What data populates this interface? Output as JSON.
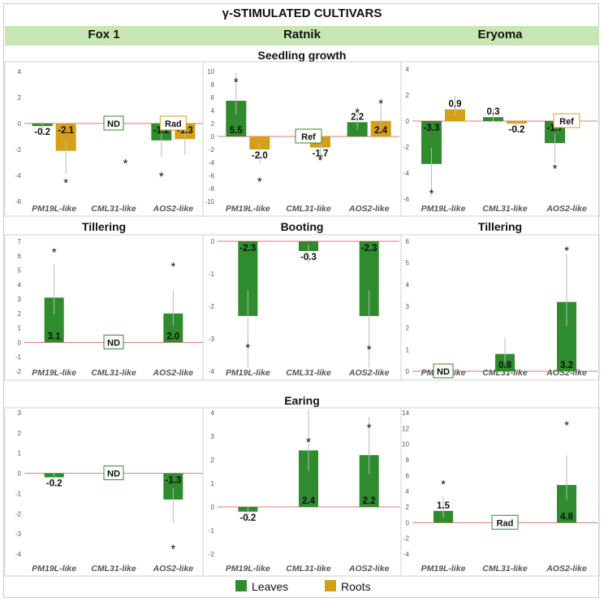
{
  "title": "γ-STIMULATED CULTIVARS",
  "columns": [
    "Fox 1",
    "Ratnik",
    "Eryoma"
  ],
  "row_titles": {
    "seedling": "Seedling growth",
    "fox_tillering": "Tillering",
    "ratnik_booting": "Booting",
    "eryoma_tillering": "Tillering",
    "earing": "Earing"
  },
  "legend": {
    "leaves": "Leaves",
    "roots": "Roots"
  },
  "colors": {
    "leaves": "#2e8b2e",
    "roots": "#d4a017",
    "zero_line": "#e07a6e",
    "header": "#c7e6b4",
    "note_ref": "#d4a017"
  },
  "chart_data": [
    {
      "id": "fox_seedling",
      "type": "bar",
      "title": "Seedling growth",
      "ylim": [
        -6,
        4
      ],
      "yticks": [
        -6,
        -4,
        -2,
        0,
        2,
        4
      ],
      "categories": [
        "PM19L-like",
        "CML31-like",
        "AOS2-like"
      ],
      "series": [
        {
          "name": "Leaves",
          "values": [
            -0.2,
            null,
            -1.3
          ]
        },
        {
          "name": "Roots",
          "values": [
            -2.1,
            null,
            -1.2
          ]
        }
      ],
      "labels": [
        "-0.2",
        "-2.1",
        "-1.2",
        "-1.3"
      ],
      "notes": [
        {
          "category": 1,
          "text": "ND"
        },
        {
          "category": 2,
          "text": "Rad"
        }
      ],
      "asterisks": [
        {
          "category": 0,
          "series": 1,
          "y": -4.5
        },
        {
          "category": 1,
          "series": 1,
          "y": -3.0
        },
        {
          "category": 2,
          "series": 0,
          "y": -4.0
        }
      ]
    },
    {
      "id": "ratnik_seedling",
      "type": "bar",
      "title": "Seedling growth",
      "ylim": [
        -10,
        10
      ],
      "yticks": [
        -10,
        -8,
        -6,
        -4,
        -2,
        0,
        2,
        4,
        6,
        8,
        10
      ],
      "categories": [
        "PM19L-like",
        "CML31-like",
        "AOS2-like"
      ],
      "series": [
        {
          "name": "Leaves",
          "values": [
            5.5,
            null,
            2.2
          ]
        },
        {
          "name": "Roots",
          "values": [
            -2.0,
            -1.7,
            2.4
          ]
        }
      ],
      "labels": [
        "5.5",
        "-2.0",
        "-1.7",
        "2.2",
        "2.4"
      ],
      "notes": [
        {
          "category": 1,
          "text": "Ref"
        }
      ],
      "asterisks": [
        {
          "category": 0,
          "series": 0,
          "y": 8.5
        },
        {
          "category": 0,
          "series": 1,
          "y": -6.8
        },
        {
          "category": 1,
          "series": 1,
          "y": -3.5
        },
        {
          "category": 2,
          "series": 0,
          "y": 3.8
        },
        {
          "category": 2,
          "series": 1,
          "y": 5.2
        }
      ]
    },
    {
      "id": "eryoma_seedling",
      "type": "bar",
      "title": "Seedling growth",
      "ylim": [
        -6,
        4
      ],
      "yticks": [
        -6,
        -4,
        -2,
        0,
        2,
        4
      ],
      "categories": [
        "PM19L-like",
        "CML31-like",
        "AOS2-like"
      ],
      "series": [
        {
          "name": "Leaves",
          "values": [
            -3.3,
            0.3,
            -1.7
          ]
        },
        {
          "name": "Roots",
          "values": [
            0.9,
            -0.2,
            null
          ]
        }
      ],
      "labels": [
        "-3.3",
        "0.9",
        "0.3",
        "-0.2",
        "-1.7"
      ],
      "notes": [
        {
          "category": 2,
          "text": "Ref"
        }
      ],
      "asterisks": [
        {
          "category": 0,
          "series": 0,
          "y": -5.5
        },
        {
          "category": 2,
          "series": 0,
          "y": -3.6
        }
      ]
    },
    {
      "id": "fox_tillering",
      "type": "bar",
      "title": "Tillering",
      "ylim": [
        -2,
        7
      ],
      "yticks": [
        -2,
        -1,
        0,
        1,
        2,
        3,
        4,
        5,
        6,
        7
      ],
      "categories": [
        "PM19L-like",
        "CML31-like",
        "AOS2-like"
      ],
      "series": [
        {
          "name": "Leaves",
          "values": [
            3.1,
            null,
            2.0
          ]
        }
      ],
      "labels": [
        "3.1",
        "2.0"
      ],
      "notes": [
        {
          "category": 1,
          "text": "ND"
        }
      ],
      "asterisks": [
        {
          "category": 0,
          "series": 0,
          "y": 6.3
        },
        {
          "category": 2,
          "series": 0,
          "y": 5.3
        }
      ]
    },
    {
      "id": "ratnik_booting",
      "type": "bar",
      "title": "Booting",
      "ylim": [
        -4,
        0
      ],
      "yticks": [
        -4,
        -3,
        -2,
        -1,
        0
      ],
      "categories": [
        "PM19L-like",
        "CML31-like",
        "AOS2-like"
      ],
      "series": [
        {
          "name": "Leaves",
          "values": [
            -2.3,
            -0.3,
            -2.3
          ]
        }
      ],
      "labels": [
        "-2.3",
        "-0.3",
        "-2.3"
      ],
      "notes": [],
      "asterisks": [
        {
          "category": 0,
          "series": 0,
          "y": -3.25
        },
        {
          "category": 2,
          "series": 0,
          "y": -3.3
        }
      ]
    },
    {
      "id": "eryoma_tillering",
      "type": "bar",
      "title": "Tillering",
      "ylim": [
        0,
        6
      ],
      "yticks": [
        0,
        1,
        2,
        3,
        4,
        5,
        6
      ],
      "categories": [
        "PM19L-like",
        "CML31-like",
        "AOS2-like"
      ],
      "series": [
        {
          "name": "Leaves",
          "values": [
            null,
            0.8,
            3.2
          ]
        }
      ],
      "labels": [
        "0.8",
        "3.2"
      ],
      "notes": [
        {
          "category": 0,
          "text": "ND"
        }
      ],
      "asterisks": [
        {
          "category": 2,
          "series": 0,
          "y": 5.6
        }
      ]
    },
    {
      "id": "fox_earing",
      "type": "bar",
      "title": "Earing",
      "ylim": [
        -4,
        3
      ],
      "yticks": [
        -4,
        -3,
        -2,
        -1,
        0,
        1,
        2,
        3
      ],
      "categories": [
        "PM19L-like",
        "CML31-like",
        "AOS2-like"
      ],
      "series": [
        {
          "name": "Leaves",
          "values": [
            -0.2,
            null,
            -1.3
          ]
        }
      ],
      "labels": [
        "-0.2",
        "-1.3"
      ],
      "notes": [
        {
          "category": 1,
          "text": "ND"
        }
      ],
      "asterisks": [
        {
          "category": 2,
          "series": 0,
          "y": -3.7
        }
      ]
    },
    {
      "id": "ratnik_earing",
      "type": "bar",
      "title": "Earing",
      "ylim": [
        -2,
        4
      ],
      "yticks": [
        -2,
        -1,
        0,
        1,
        2,
        3,
        4
      ],
      "categories": [
        "PM19L-like",
        "CML31-like",
        "AOS2-like"
      ],
      "series": [
        {
          "name": "Leaves",
          "values": [
            -0.2,
            2.4,
            2.2
          ]
        }
      ],
      "labels": [
        "-0.2",
        "2.4",
        "2.2"
      ],
      "notes": [],
      "asterisks": [
        {
          "category": 1,
          "series": 0,
          "y": 2.8
        },
        {
          "category": 2,
          "series": 0,
          "y": 3.4
        }
      ]
    },
    {
      "id": "eryoma_earing",
      "type": "bar",
      "title": "Earing",
      "ylim": [
        -4,
        14
      ],
      "yticks": [
        -4,
        -2,
        0,
        2,
        4,
        6,
        8,
        10,
        12,
        14
      ],
      "categories": [
        "PM19L-like",
        "CML31-like",
        "AOS2-like"
      ],
      "series": [
        {
          "name": "Leaves",
          "values": [
            1.5,
            null,
            4.8
          ]
        }
      ],
      "labels": [
        "1.5",
        "4.8"
      ],
      "notes": [
        {
          "category": 1,
          "text": "Rad"
        }
      ],
      "asterisks": [
        {
          "category": 0,
          "series": 0,
          "y": 5.0
        },
        {
          "category": 2,
          "series": 0,
          "y": 12.5
        }
      ]
    }
  ]
}
